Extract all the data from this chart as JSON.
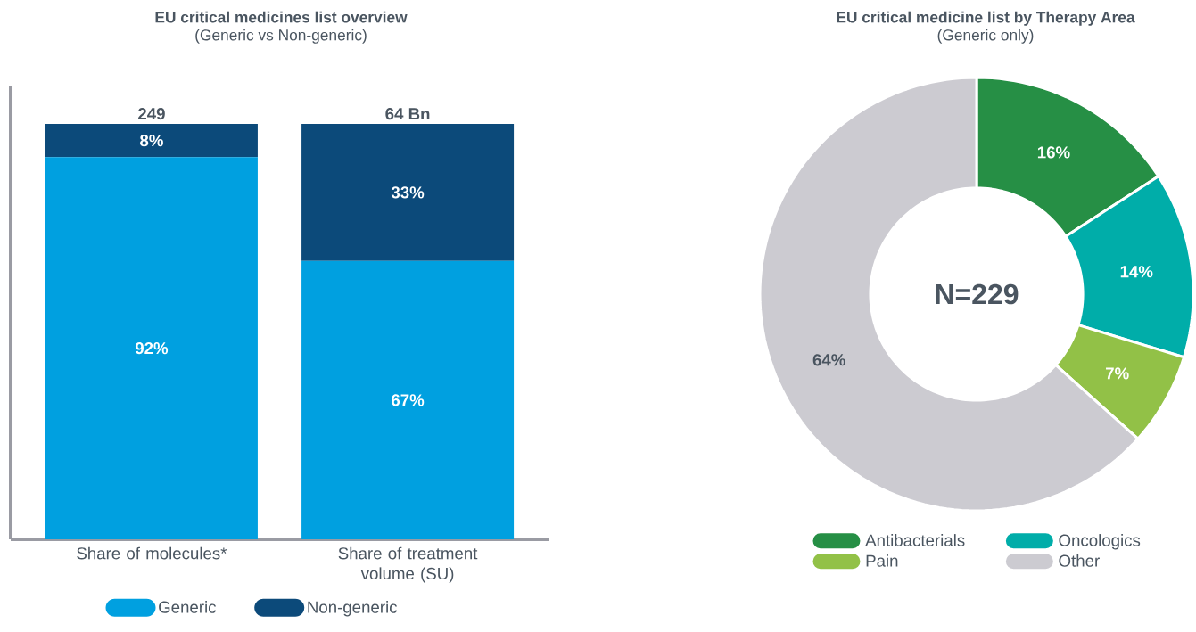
{
  "chart_data": [
    {
      "type": "bar",
      "title": "EU critical medicines list overview",
      "subtitle": "(Generic vs Non-generic)",
      "categories": [
        "Share of molecules*",
        "Share of treatment volume (SU)"
      ],
      "stacked": true,
      "legend": "bottom",
      "annotations": [
        "249",
        "64 Bn"
      ],
      "series": [
        {
          "name": "Generic",
          "color": "#00a0e0",
          "values": [
            92,
            67
          ],
          "value_labels": [
            "92%",
            "67%"
          ]
        },
        {
          "name": "Non-generic",
          "color": "#0c4a7a",
          "values": [
            8,
            33
          ],
          "value_labels": [
            "8%",
            "33%"
          ]
        }
      ]
    },
    {
      "type": "donut",
      "title": "EU critical medicine list by Therapy Area",
      "subtitle": "(Generic only)",
      "categories": [
        "Antibacterials",
        "Oncologics",
        "Pain",
        "Other"
      ],
      "values": [
        16,
        14,
        7,
        64
      ],
      "colors": [
        "#268f45",
        "#00ada9",
        "#92c147",
        "#cccbd1"
      ],
      "value_labels": [
        "16%",
        "14%",
        "7%",
        "64%"
      ],
      "annotations": [
        "N=229"
      ],
      "legend": "bottom"
    }
  ]
}
